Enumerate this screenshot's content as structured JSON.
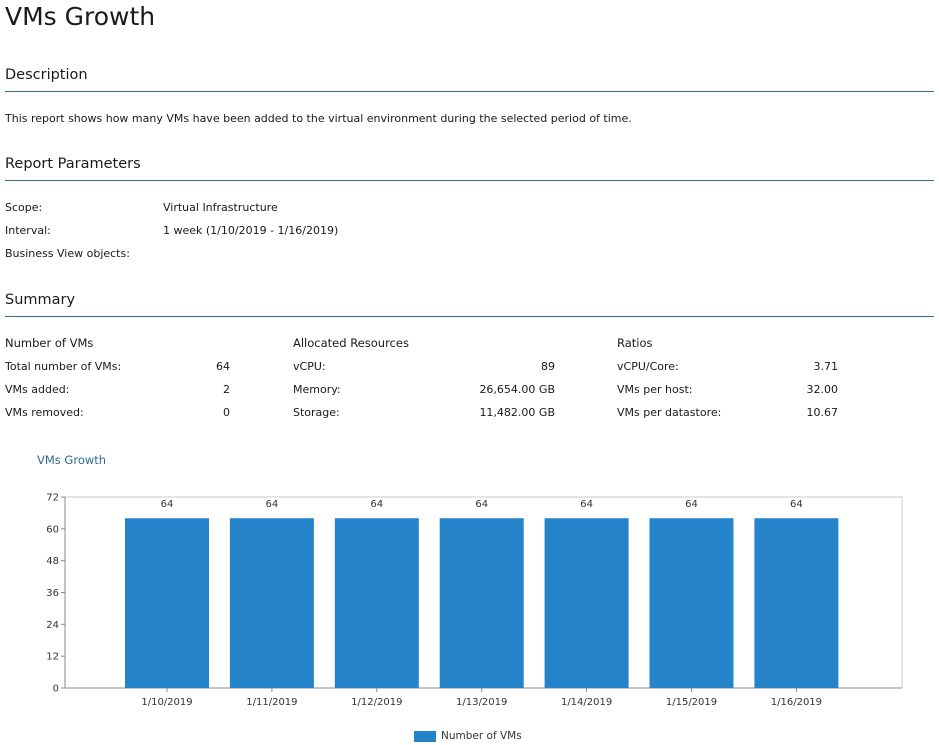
{
  "page": {
    "title": "VMs Growth"
  },
  "description": {
    "heading": "Description",
    "text": "This report shows how many VMs have been added to the virtual environment during the selected period of time."
  },
  "parameters": {
    "heading": "Report Parameters",
    "rows": [
      {
        "label": "Scope:",
        "value": "Virtual Infrastructure"
      },
      {
        "label": "Interval:",
        "value": "1 week (1/10/2019 - 1/16/2019)"
      },
      {
        "label": "Business View objects:",
        "value": ""
      }
    ]
  },
  "summary": {
    "heading": "Summary",
    "groups": [
      {
        "title": "Number of VMs",
        "rows": [
          {
            "label": "Total number of VMs:",
            "value": "64"
          },
          {
            "label": "VMs added:",
            "value": "2"
          },
          {
            "label": "VMs removed:",
            "value": "0"
          }
        ]
      },
      {
        "title": "Allocated Resources",
        "rows": [
          {
            "label": "vCPU:",
            "value": "89"
          },
          {
            "label": "Memory:",
            "value": "26,654.00 GB"
          },
          {
            "label": "Storage:",
            "value": "11,482.00 GB"
          }
        ]
      },
      {
        "title": "Ratios",
        "rows": [
          {
            "label": "vCPU/Core:",
            "value": "3.71"
          },
          {
            "label": "VMs per host:",
            "value": "32.00"
          },
          {
            "label": "VMs per datastore:",
            "value": "10.67"
          }
        ]
      }
    ]
  },
  "colors": {
    "bar": "#2584c9",
    "heading_rule": "#2f6a92",
    "chart_title": "#2f6a92"
  },
  "chart_data": {
    "type": "bar",
    "title": "VMs Growth",
    "categories": [
      "1/10/2019",
      "1/11/2019",
      "1/12/2019",
      "1/13/2019",
      "1/14/2019",
      "1/15/2019",
      "1/16/2019"
    ],
    "series": [
      {
        "name": "Number of VMs",
        "values": [
          64,
          64,
          64,
          64,
          64,
          64,
          64
        ]
      }
    ],
    "data_labels": [
      "64",
      "64",
      "64",
      "64",
      "64",
      "64",
      "64"
    ],
    "yticks": [
      0,
      12,
      24,
      36,
      48,
      60,
      72
    ],
    "ylim": [
      0,
      72
    ],
    "xlabel": "",
    "ylabel": "",
    "grid": false,
    "legend": "bottom-center"
  }
}
